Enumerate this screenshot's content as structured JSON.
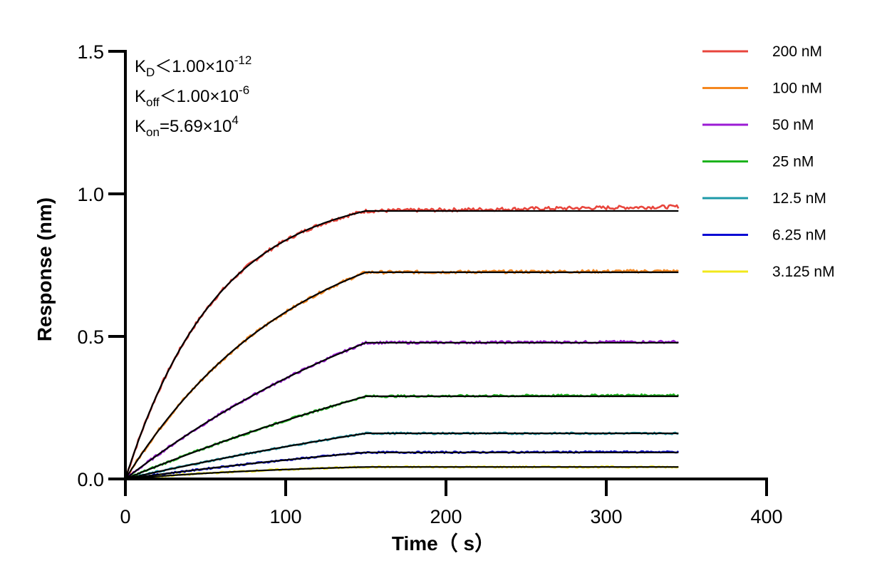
{
  "chart_data": {
    "type": "line",
    "xlabel": "Time（ s）",
    "ylabel": "Response (nm)",
    "xlim": [
      0,
      400
    ],
    "ylim": [
      0,
      1.5
    ],
    "xticks": [
      "0",
      "100",
      "200",
      "300",
      "400"
    ],
    "yticks": [
      "0.0",
      "0.5",
      "1.0",
      "1.5"
    ],
    "grid": false,
    "legend_position": "top-right",
    "association_end": 150,
    "x_end": 345,
    "annotations": {
      "kd": {
        "base": "K",
        "sub": "D",
        "rel": "＜1.00×10",
        "exp": "-12"
      },
      "koff": {
        "base": "K",
        "sub": "off",
        "rel": "＜1.00×10",
        "exp": "-6"
      },
      "kon": {
        "base": "K",
        "sub": "on",
        "rel": "=5.69×10",
        "exp": "4"
      }
    },
    "fit_color": "#000000",
    "series": [
      {
        "name": "200 nM",
        "color": "#e8453c",
        "plateau": 0.94,
        "rate": 0.0175,
        "drift": 0.015
      },
      {
        "name": "100 nM",
        "color": "#f5871f",
        "plateau": 0.725,
        "rate": 0.0095,
        "drift": 0.004
      },
      {
        "name": "50 nM",
        "color": "#9b1bd4",
        "plateau": 0.478,
        "rate": 0.0045,
        "drift": 0.003
      },
      {
        "name": "25 nM",
        "color": "#1db31d",
        "plateau": 0.29,
        "rate": 0.0025,
        "drift": 0.004
      },
      {
        "name": "12.5 nM",
        "color": "#1e9aa8",
        "plateau": 0.16,
        "rate": 0.0025,
        "drift": 0.0
      },
      {
        "name": "6.25 nM",
        "color": "#0a0ad4",
        "plateau": 0.093,
        "rate": 0.003,
        "drift": 0.002
      },
      {
        "name": "3.125 nM",
        "color": "#f2e81c",
        "plateau": 0.042,
        "rate": 0.008,
        "drift": 0.0
      }
    ]
  }
}
